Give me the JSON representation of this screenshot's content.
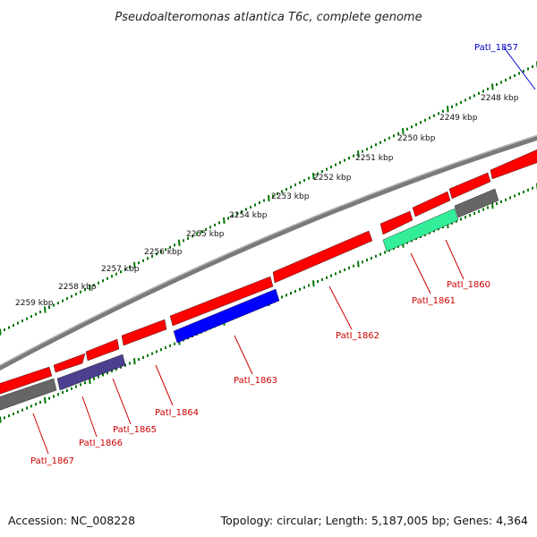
{
  "title": "Pseudoalteromonas atlantica T6c, complete genome",
  "footer": {
    "accession": "Accession: NC_008228",
    "summary": "Topology: circular; Length: 5,187,005 bp; Genes: 4,364"
  },
  "ruler_labels": [
    "2248 kbp",
    "2249 kbp",
    "2250 kbp",
    "2251 kbp",
    "2252 kbp",
    "2253 kbp",
    "2254 kbp",
    "2255 kbp",
    "2256 kbp",
    "2257 kbp",
    "2258 kbp",
    "2259 kbp"
  ],
  "colors": {
    "red_gene": "#ff0000",
    "blue_gene": "#0000ff",
    "purple_gene": "#4b3f8f",
    "gray_gene": "#666666",
    "teal_gene": "#33ee99",
    "backbone": "#7a7a7a",
    "tick": "#007700",
    "label_red": "#cc0000",
    "label_blue": "#0000cc"
  },
  "gene_labels": [
    {
      "name": "PatI_1857",
      "color": "label_blue"
    },
    {
      "name": "PatI_1860",
      "color": "label_red"
    },
    {
      "name": "PatI_1861",
      "color": "label_red"
    },
    {
      "name": "PatI_1862",
      "color": "label_red"
    },
    {
      "name": "PatI_1863",
      "color": "label_red"
    },
    {
      "name": "PatI_1864",
      "color": "label_red"
    },
    {
      "name": "PatI_1865",
      "color": "label_red"
    },
    {
      "name": "PatI_1866",
      "color": "label_red"
    },
    {
      "name": "PatI_1867",
      "color": "label_red"
    }
  ],
  "features": [
    {
      "type": "gene",
      "color": "red_gene",
      "strand": "+"
    },
    {
      "type": "gene",
      "color": "red_gene",
      "strand": "+"
    },
    {
      "type": "gene",
      "color": "red_gene",
      "strand": "+"
    },
    {
      "type": "gene",
      "color": "red_gene",
      "strand": "+"
    },
    {
      "type": "gene",
      "color": "red_gene",
      "strand": "+"
    },
    {
      "type": "gene",
      "color": "red_gene",
      "strand": "+"
    },
    {
      "type": "gene",
      "color": "red_gene",
      "strand": "+"
    },
    {
      "type": "gene",
      "color": "red_gene",
      "strand": "+"
    },
    {
      "type": "gene",
      "color": "red_gene",
      "strand": "+"
    },
    {
      "type": "gene",
      "color": "red_gene",
      "strand": "+"
    },
    {
      "type": "gene",
      "color": "gray_gene",
      "strand": "-"
    },
    {
      "type": "gene",
      "color": "teal_gene",
      "strand": "-"
    },
    {
      "type": "gene",
      "color": "blue_gene",
      "strand": "-"
    },
    {
      "type": "gene",
      "color": "purple_gene",
      "strand": "-"
    },
    {
      "type": "gene",
      "color": "gray_gene",
      "strand": "-"
    }
  ]
}
